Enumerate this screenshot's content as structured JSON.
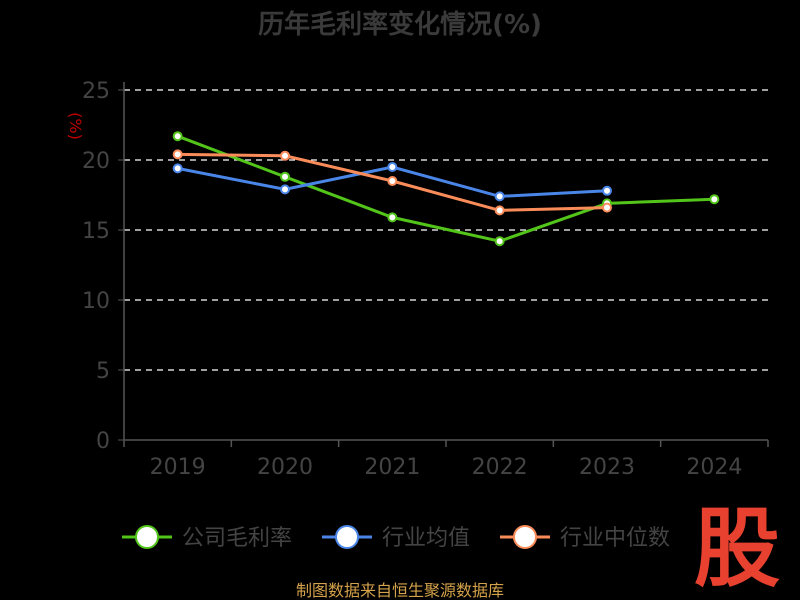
{
  "chart_data": {
    "type": "line",
    "title": "历年毛利率变化情况(%)",
    "ylabel": "(%)",
    "categories": [
      "2019",
      "2020",
      "2021",
      "2022",
      "2023",
      "2024"
    ],
    "ylim": [
      0,
      25
    ],
    "yticks": [
      0,
      5,
      10,
      15,
      20,
      25
    ],
    "grid": true,
    "legend_position": "bottom",
    "series": [
      {
        "name": "公司毛利率",
        "color": "#52c41a",
        "values": [
          21.7,
          18.8,
          15.9,
          14.2,
          16.9,
          17.2
        ]
      },
      {
        "name": "行业均值",
        "color": "#4a86e8",
        "values": [
          19.4,
          17.9,
          19.5,
          17.4,
          17.8,
          null
        ]
      },
      {
        "name": "行业中位数",
        "color": "#fa8c5a",
        "values": [
          20.4,
          20.3,
          18.5,
          16.4,
          16.6,
          null
        ]
      }
    ]
  },
  "footer": {
    "source": "制图数据来自恒生聚源数据库"
  },
  "watermark": {
    "text": "股"
  }
}
